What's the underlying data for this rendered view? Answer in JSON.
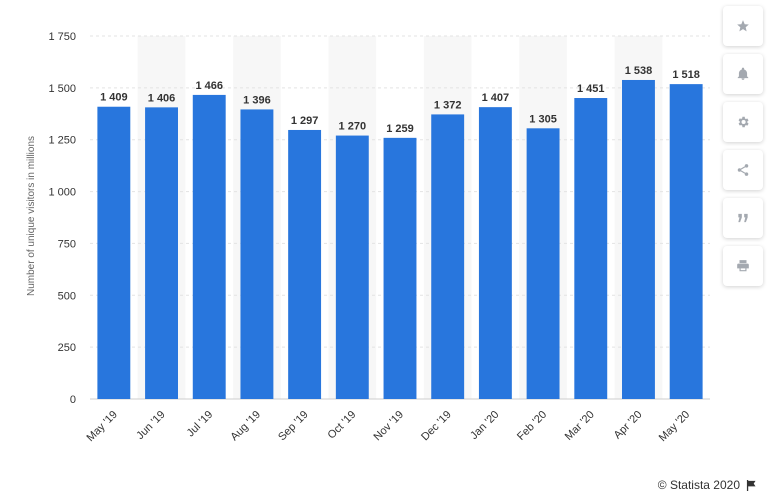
{
  "chart_data": {
    "type": "bar",
    "categories": [
      "May '19",
      "Jun '19",
      "Jul '19",
      "Aug '19",
      "Sep '19",
      "Oct '19",
      "Nov '19",
      "Dec '19",
      "Jan '20",
      "Feb '20",
      "Mar '20",
      "Apr '20",
      "May '20"
    ],
    "values": [
      1409,
      1406,
      1466,
      1396,
      1297,
      1270,
      1259,
      1372,
      1407,
      1305,
      1451,
      1538,
      1518
    ],
    "data_labels": [
      "1 409",
      "1 406",
      "1 466",
      "1 396",
      "1 297",
      "1 270",
      "1 259",
      "1 372",
      "1 407",
      "1 305",
      "1 451",
      "1 538",
      "1 518"
    ],
    "ylabel": "Number of unique visitors in millions",
    "ylim": [
      0,
      1750
    ],
    "yticks": [
      0,
      250,
      500,
      750,
      1000,
      1250,
      1500,
      1750
    ],
    "ytick_labels": [
      "0",
      "250",
      "500",
      "750",
      "1 000",
      "1 250",
      "1 500",
      "1 750"
    ],
    "grid": true,
    "bar_color": "#2876dd",
    "band_color": "#f7f7f7"
  },
  "tools": [
    {
      "name": "favorite",
      "icon": "star-icon"
    },
    {
      "name": "notification",
      "icon": "bell-icon"
    },
    {
      "name": "settings",
      "icon": "gear-icon"
    },
    {
      "name": "share",
      "icon": "share-icon"
    },
    {
      "name": "cite",
      "icon": "quote-icon"
    },
    {
      "name": "print",
      "icon": "print-icon"
    }
  ],
  "credit": "© Statista 2020"
}
